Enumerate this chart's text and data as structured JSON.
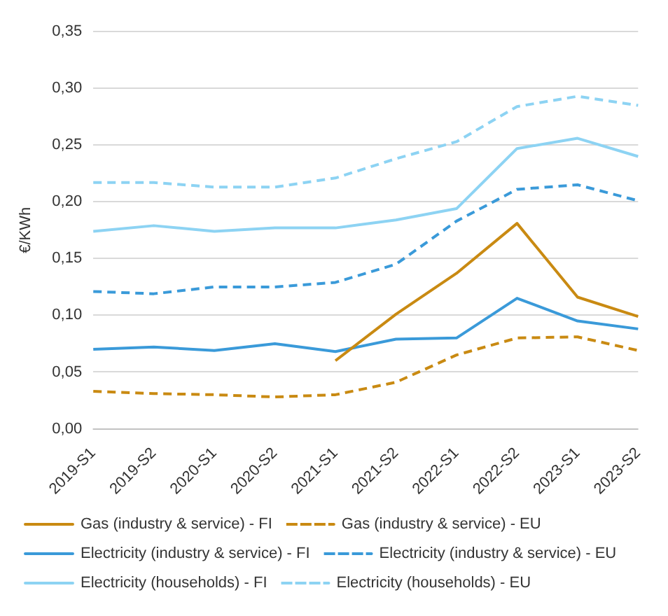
{
  "chart_data": {
    "type": "line",
    "ylabel": "€/KWh",
    "categories": [
      "2019-S1",
      "2019-S2",
      "2020-S1",
      "2020-S2",
      "2021-S1",
      "2021-S2",
      "2022-S1",
      "2022-S2",
      "2023-S1",
      "2023-S2"
    ],
    "series": [
      {
        "name": "Gas (industry & service) - FI",
        "color": "#c98a12",
        "line_style": "solid",
        "values": [
          null,
          null,
          null,
          null,
          0.06,
          0.101,
          0.137,
          0.181,
          0.116,
          0.099
        ]
      },
      {
        "name": "Gas (industry & service) - EU",
        "color": "#c98a12",
        "line_style": "dashed",
        "values": [
          0.033,
          0.031,
          0.03,
          0.028,
          0.03,
          0.041,
          0.065,
          0.08,
          0.081,
          0.069
        ]
      },
      {
        "name": "Electricity (industry & service) - FI",
        "color": "#3a9ad9",
        "line_style": "solid",
        "values": [
          0.07,
          0.072,
          0.069,
          0.075,
          0.068,
          0.079,
          0.08,
          0.115,
          0.095,
          0.088
        ]
      },
      {
        "name": "Electricity (industry & service) - EU",
        "color": "#3a9ad9",
        "line_style": "dashed",
        "values": [
          0.121,
          0.119,
          0.125,
          0.125,
          0.129,
          0.145,
          0.183,
          0.211,
          0.215,
          0.201
        ]
      },
      {
        "name": "Electricity (households) - FI",
        "color": "#8dd3f3",
        "line_style": "solid",
        "values": [
          0.174,
          0.179,
          0.174,
          0.177,
          0.177,
          0.184,
          0.194,
          0.247,
          0.256,
          0.24
        ]
      },
      {
        "name": "Electricity (households) - EU",
        "color": "#8dd3f3",
        "line_style": "dashed",
        "values": [
          0.217,
          0.217,
          0.213,
          0.213,
          0.221,
          0.238,
          0.253,
          0.284,
          0.293,
          0.285
        ]
      }
    ],
    "ylim": [
      0,
      0.35
    ],
    "yticks": [
      {
        "value": 0,
        "label": "0,00"
      },
      {
        "value": 0.05,
        "label": "0,05"
      },
      {
        "value": 0.1,
        "label": "0,10"
      },
      {
        "value": 0.15,
        "label": "0,15"
      },
      {
        "value": 0.2,
        "label": "0,20"
      },
      {
        "value": 0.25,
        "label": "0,25"
      },
      {
        "value": 0.3,
        "label": "0,30"
      },
      {
        "value": 0.35,
        "label": "0,35"
      }
    ],
    "grid": "y",
    "legend": "bottom",
    "marker": "none"
  }
}
